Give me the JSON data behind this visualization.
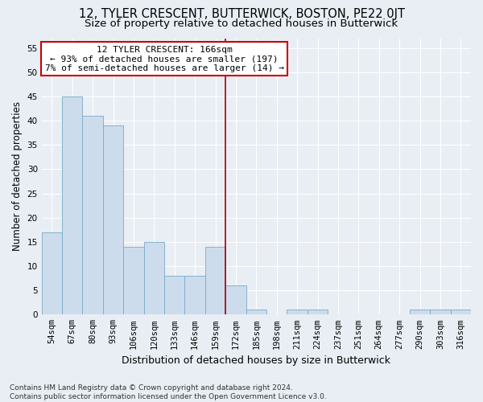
{
  "title": "12, TYLER CRESCENT, BUTTERWICK, BOSTON, PE22 0JT",
  "subtitle": "Size of property relative to detached houses in Butterwick",
  "xlabel": "Distribution of detached houses by size in Butterwick",
  "ylabel": "Number of detached properties",
  "footer_line1": "Contains HM Land Registry data © Crown copyright and database right 2024.",
  "footer_line2": "Contains public sector information licensed under the Open Government Licence v3.0.",
  "bin_labels": [
    "54sqm",
    "67sqm",
    "80sqm",
    "93sqm",
    "106sqm",
    "120sqm",
    "133sqm",
    "146sqm",
    "159sqm",
    "172sqm",
    "185sqm",
    "198sqm",
    "211sqm",
    "224sqm",
    "237sqm",
    "251sqm",
    "264sqm",
    "277sqm",
    "290sqm",
    "303sqm",
    "316sqm"
  ],
  "bar_values": [
    17,
    45,
    41,
    39,
    14,
    15,
    8,
    8,
    14,
    6,
    1,
    0,
    1,
    1,
    0,
    0,
    0,
    0,
    1,
    1,
    1
  ],
  "bar_color": "#ccdcec",
  "bar_edge_color": "#7aaac8",
  "vline_index": 8.5,
  "annotation_title": "12 TYLER CRESCENT: 166sqm",
  "annotation_line1": "← 93% of detached houses are smaller (197)",
  "annotation_line2": "7% of semi-detached houses are larger (14) →",
  "vline_color": "#aa0000",
  "annotation_box_edgecolor": "#cc0000",
  "ylim": [
    0,
    57
  ],
  "yticks": [
    0,
    5,
    10,
    15,
    20,
    25,
    30,
    35,
    40,
    45,
    50,
    55
  ],
  "background_color": "#e8eef4",
  "grid_color": "#ffffff",
  "title_fontsize": 10.5,
  "subtitle_fontsize": 9.5,
  "xlabel_fontsize": 9,
  "ylabel_fontsize": 8.5,
  "tick_fontsize": 7.5,
  "footer_fontsize": 6.5,
  "annotation_fontsize": 8
}
